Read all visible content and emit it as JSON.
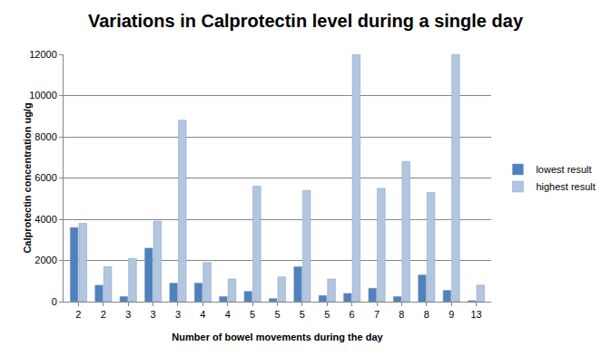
{
  "chart_data": {
    "type": "bar",
    "title": "Variations in Calprotectin level during a single day",
    "x_label": "Number of bowel movements during the day",
    "y_label": "Calprotectin concentration ug/g",
    "categories": [
      "2",
      "2",
      "3",
      "3",
      "3",
      "4",
      "4",
      "5",
      "5",
      "5",
      "5",
      "6",
      "7",
      "8",
      "8",
      "9",
      "13"
    ],
    "series": [
      {
        "name": "lowest result",
        "color": "#4f81bd",
        "values": [
          3600,
          800,
          250,
          2600,
          900,
          900,
          250,
          500,
          150,
          1700,
          300,
          400,
          650,
          250,
          1300,
          550,
          50
        ]
      },
      {
        "name": "highest result",
        "color": "#b3c6e0",
        "values": [
          3800,
          1700,
          2100,
          3900,
          8800,
          1900,
          1100,
          5600,
          1200,
          5400,
          1100,
          12000,
          5500,
          6800,
          5300,
          12000,
          800
        ]
      }
    ],
    "ylim": [
      0,
      12000
    ],
    "yticks": [
      0,
      2000,
      4000,
      6000,
      8000,
      10000,
      12000
    ],
    "grid": true,
    "legend": "right"
  }
}
